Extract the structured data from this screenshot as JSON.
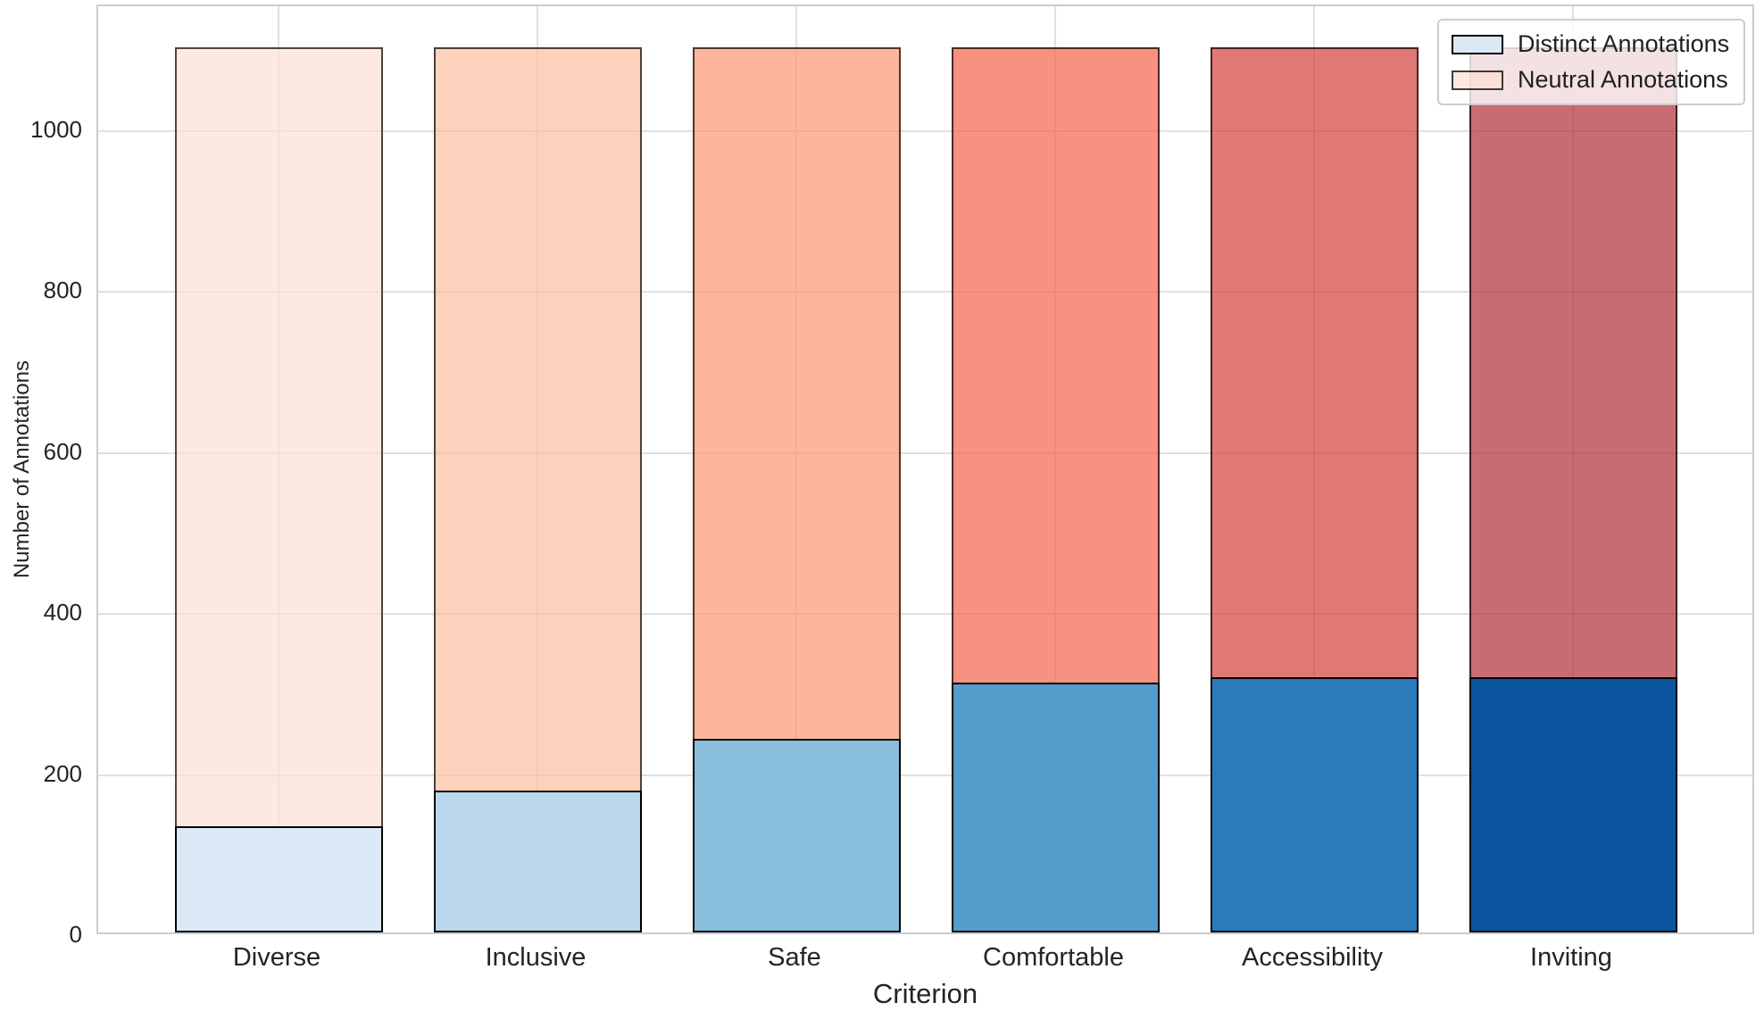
{
  "chart_data": {
    "type": "bar",
    "stacked": true,
    "title": "",
    "xlabel": "Criterion",
    "ylabel": "Number of Annotations",
    "categories": [
      "Diverse",
      "Inclusive",
      "Safe",
      "Comfortable",
      "Accessibility",
      "Inviting"
    ],
    "series": [
      {
        "name": "Distinct Annotations",
        "values": [
          132,
          176,
          241,
          310,
          317,
          317
        ],
        "fills": [
          "#dbe9f6",
          "#bad6eb",
          "#89bedc",
          "#539ecd",
          "#2b7bba",
          "#0b559f"
        ],
        "edge": "#000000",
        "alpha": 1.0
      },
      {
        "name": "Neutral Annotations",
        "values": [
          968,
          924,
          859,
          790,
          783,
          783
        ],
        "fills": [
          "#fce0d2",
          "#fcbf9f",
          "#fc9672",
          "#f4634a",
          "#d33e3b",
          "#af2d36"
        ],
        "edge": "#000000",
        "alpha": 0.7
      }
    ],
    "bar_totals": [
      1100,
      1100,
      1100,
      1100,
      1100,
      1100
    ],
    "ylim": [
      0,
      1155
    ],
    "yticks": [
      0,
      200,
      400,
      600,
      800,
      1000
    ],
    "grid": true,
    "grid_color": "#e0e0e0",
    "spine_color": "#cccccc",
    "text_color": "#242424",
    "background_color": "#ffffff",
    "legend": {
      "position": "upper right",
      "entries": [
        "Distinct Annotations",
        "Neutral Annotations"
      ]
    }
  }
}
